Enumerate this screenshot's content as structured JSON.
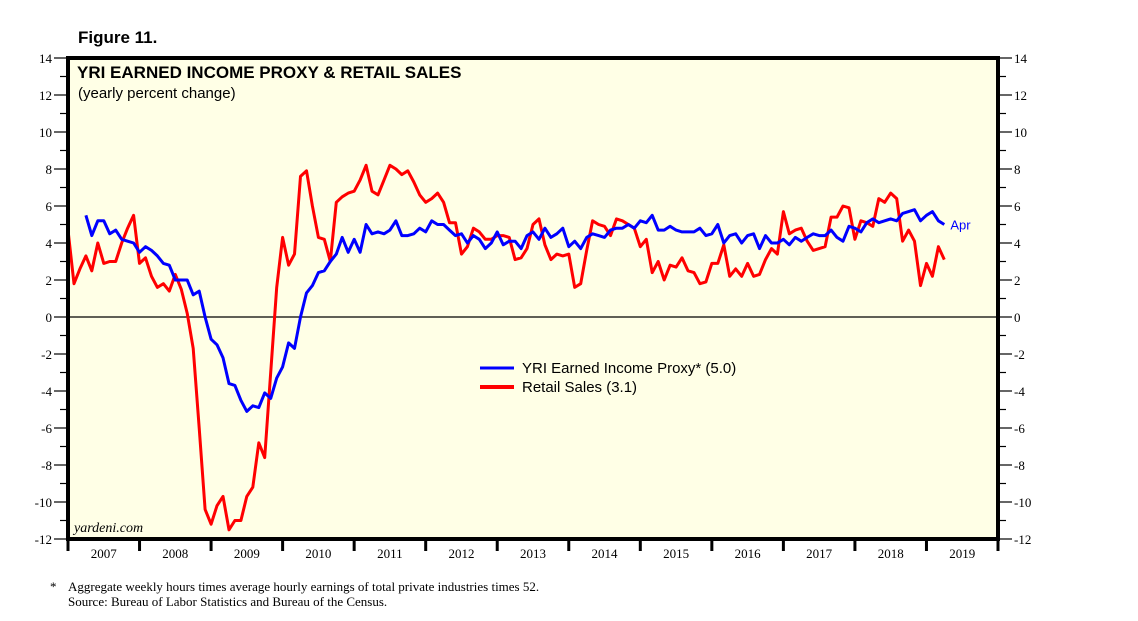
{
  "figure_label": "Figure 11.",
  "footnote": {
    "marker": "*",
    "text": "Aggregate weekly hours times average hourly earnings of total private industries times 52.",
    "source": "Source: Bureau of Labor Statistics and Bureau of the Census."
  },
  "chart_data": {
    "type": "line",
    "title": "YRI EARNED INCOME PROXY & RETAIL SALES",
    "subtitle": "(yearly percent change)",
    "watermark": "yardeni.com",
    "xlabel": "",
    "ylabel": "",
    "ylim": [
      -12,
      14
    ],
    "yticks": [
      -12,
      -10,
      -8,
      -6,
      -4,
      -2,
      0,
      2,
      4,
      6,
      8,
      10,
      12,
      14
    ],
    "x_start": "2007-01",
    "x_frequency": "monthly",
    "x_year_labels": [
      "2007",
      "2008",
      "2009",
      "2010",
      "2011",
      "2012",
      "2013",
      "2014",
      "2015",
      "2016",
      "2017",
      "2018",
      "2019"
    ],
    "grid": false,
    "zero_line": true,
    "legend_position": "center",
    "end_annotation": "Apr",
    "colors": {
      "plot_background": "#ffffe6",
      "proxy": "#0000ff",
      "retail": "#ff0000"
    },
    "series": [
      {
        "name": "YRI Earned Income Proxy* (5.0)",
        "color": "#0000ff",
        "values": [
          null,
          null,
          null,
          5.5,
          4.4,
          5.2,
          5.2,
          4.5,
          4.7,
          4.2,
          4.1,
          4.0,
          3.5,
          3.8,
          3.6,
          3.3,
          2.9,
          2.8,
          2.0,
          2.0,
          2.0,
          1.2,
          1.4,
          0.0,
          -1.2,
          -1.5,
          -2.2,
          -3.6,
          -3.7,
          -4.5,
          -5.1,
          -4.8,
          -4.9,
          -4.1,
          -4.4,
          -3.3,
          -2.7,
          -1.4,
          -1.7,
          0.0,
          1.3,
          1.7,
          2.4,
          2.5,
          3.0,
          3.4,
          4.3,
          3.5,
          4.2,
          3.5,
          5.0,
          4.5,
          4.6,
          4.5,
          4.7,
          5.2,
          4.4,
          4.4,
          4.5,
          4.8,
          4.6,
          5.2,
          5.0,
          5.0,
          4.7,
          4.4,
          4.5,
          4.0,
          4.4,
          4.2,
          3.7,
          4.0,
          4.6,
          3.9,
          4.1,
          4.1,
          3.7,
          4.4,
          4.6,
          4.2,
          4.8,
          4.3,
          4.5,
          4.8,
          3.8,
          4.1,
          3.7,
          4.3,
          4.5,
          4.4,
          4.3,
          4.7,
          4.8,
          4.8,
          5.0,
          4.8,
          5.2,
          5.1,
          5.5,
          4.7,
          4.7,
          4.9,
          4.7,
          4.6,
          4.6,
          4.6,
          4.8,
          4.4,
          4.5,
          5.0,
          4.0,
          4.4,
          4.5,
          4.0,
          4.4,
          4.5,
          3.7,
          4.4,
          4.0,
          4.0,
          4.2,
          3.9,
          4.3,
          4.1,
          4.3,
          4.5,
          4.4,
          4.4,
          4.7,
          4.3,
          4.1,
          4.9,
          4.8,
          4.6,
          5.1,
          5.3,
          5.1,
          5.2,
          5.3,
          5.2,
          5.6,
          5.7,
          5.8,
          5.2,
          5.5,
          5.7,
          5.2,
          5.0
        ]
      },
      {
        "name": "Retail Sales (3.1)",
        "color": "#ff0000",
        "values": [
          4.7,
          1.8,
          2.6,
          3.3,
          2.5,
          4.0,
          2.9,
          3.0,
          3.0,
          4.0,
          4.8,
          5.5,
          2.9,
          3.2,
          2.2,
          1.6,
          1.8,
          1.4,
          2.3,
          1.5,
          0.2,
          -1.7,
          -6.0,
          -10.4,
          -11.2,
          -10.2,
          -9.7,
          -11.5,
          -11.0,
          -11.0,
          -9.7,
          -9.2,
          -6.8,
          -7.6,
          -3.0,
          1.6,
          4.3,
          2.8,
          3.4,
          7.6,
          7.9,
          6.0,
          4.3,
          4.2,
          3.0,
          6.2,
          6.5,
          6.7,
          6.8,
          7.4,
          8.2,
          6.8,
          6.6,
          7.4,
          8.2,
          8.0,
          7.7,
          7.9,
          7.3,
          6.6,
          6.2,
          6.4,
          6.7,
          6.2,
          5.1,
          5.1,
          3.4,
          3.8,
          4.8,
          4.6,
          4.2,
          4.2,
          4.4,
          4.4,
          4.3,
          3.1,
          3.2,
          3.7,
          5.0,
          5.3,
          3.9,
          3.1,
          3.4,
          3.3,
          3.4,
          1.6,
          1.8,
          3.6,
          5.2,
          5.0,
          4.9,
          4.4,
          5.3,
          5.2,
          5.0,
          4.8,
          3.8,
          4.2,
          2.4,
          3.0,
          2.0,
          2.8,
          2.7,
          3.2,
          2.5,
          2.4,
          1.8,
          1.9,
          2.9,
          2.9,
          3.9,
          2.2,
          2.6,
          2.2,
          2.9,
          2.2,
          2.3,
          3.1,
          3.7,
          3.4,
          5.7,
          4.5,
          4.7,
          4.8,
          4.1,
          3.6,
          3.7,
          3.8,
          5.4,
          5.4,
          6.0,
          5.9,
          4.2,
          5.2,
          5.1,
          4.9,
          6.4,
          6.2,
          6.7,
          6.4,
          4.1,
          4.7,
          4.1,
          1.7,
          2.9,
          2.2,
          3.8,
          3.1
        ]
      }
    ]
  }
}
